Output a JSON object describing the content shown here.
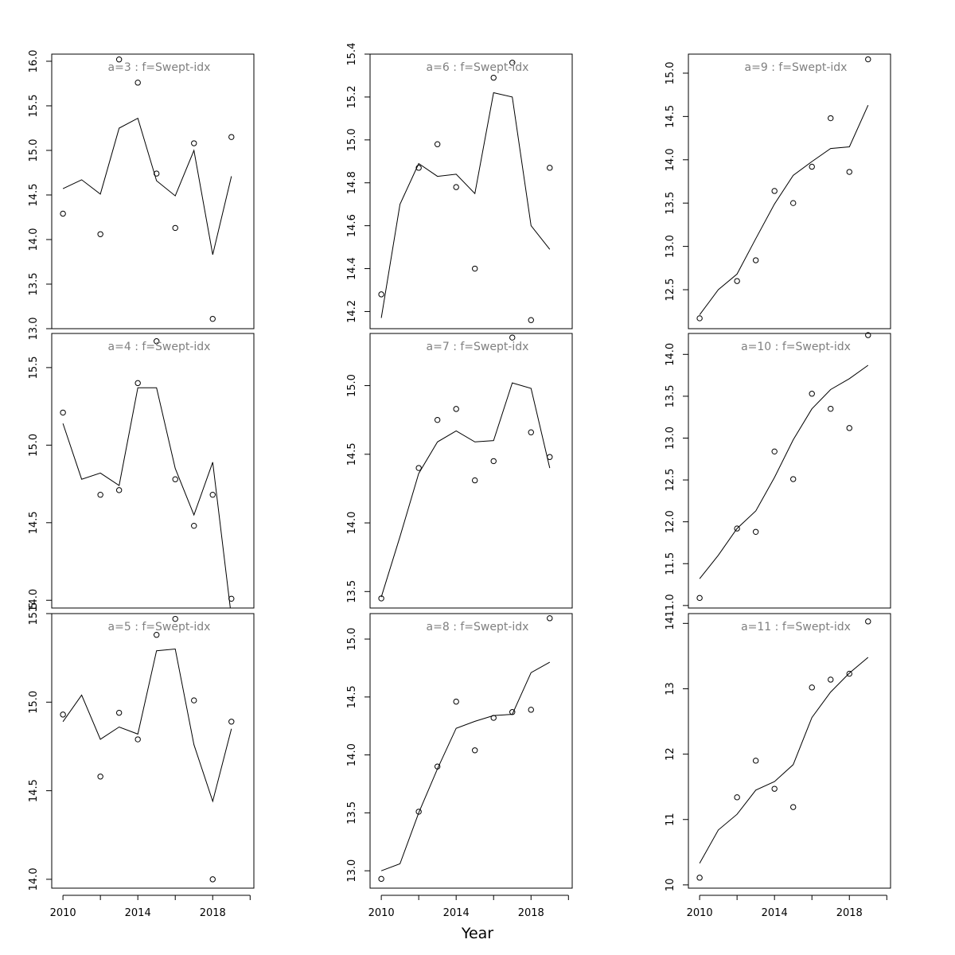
{
  "figure": {
    "xlabel": "Year"
  },
  "chart_data": [
    {
      "type": "line",
      "title": "a=3 : f=Swept-idx",
      "xlim": [
        2009.4,
        2020.2
      ],
      "ylim": [
        13.0,
        16.08
      ],
      "xticks": [
        2010,
        2014,
        2018
      ],
      "yticks": [
        13.0,
        13.5,
        14.0,
        14.5,
        15.0,
        15.5,
        16.0
      ],
      "ytick_labels": [
        "13.0",
        "13.5",
        "14.0",
        "14.5",
        "15.0",
        "15.5",
        "16.0"
      ],
      "show_xticks": false,
      "observed": [
        {
          "x": 2010,
          "y": 14.29
        },
        {
          "x": 2012,
          "y": 14.06
        },
        {
          "x": 2013,
          "y": 16.02
        },
        {
          "x": 2014,
          "y": 15.76
        },
        {
          "x": 2015,
          "y": 14.74
        },
        {
          "x": 2016,
          "y": 14.13
        },
        {
          "x": 2017,
          "y": 15.08
        },
        {
          "x": 2018,
          "y": 13.11
        },
        {
          "x": 2019,
          "y": 15.15
        }
      ],
      "fitted": [
        {
          "x": 2010,
          "y": 14.57
        },
        {
          "x": 2011,
          "y": 14.67
        },
        {
          "x": 2012,
          "y": 14.51
        },
        {
          "x": 2013,
          "y": 15.25
        },
        {
          "x": 2014,
          "y": 15.36
        },
        {
          "x": 2015,
          "y": 14.66
        },
        {
          "x": 2016,
          "y": 14.49
        },
        {
          "x": 2017,
          "y": 15.0
        },
        {
          "x": 2018,
          "y": 13.83
        },
        {
          "x": 2019,
          "y": 14.71
        }
      ]
    },
    {
      "type": "line",
      "title": "a=4 : f=Swept-idx",
      "xlim": [
        2009.4,
        2020.2
      ],
      "ylim": [
        13.95,
        15.72
      ],
      "xticks": [
        2010,
        2014,
        2018
      ],
      "yticks": [
        14.0,
        14.5,
        15.0,
        15.5
      ],
      "ytick_labels": [
        "14.0",
        "14.5",
        "15.0",
        "15.5"
      ],
      "show_xticks": false,
      "observed": [
        {
          "x": 2010,
          "y": 15.21
        },
        {
          "x": 2012,
          "y": 14.68
        },
        {
          "x": 2013,
          "y": 14.71
        },
        {
          "x": 2014,
          "y": 15.4
        },
        {
          "x": 2015,
          "y": 15.67
        },
        {
          "x": 2016,
          "y": 14.78
        },
        {
          "x": 2017,
          "y": 14.48
        },
        {
          "x": 2018,
          "y": 14.68
        },
        {
          "x": 2019,
          "y": 14.01
        }
      ],
      "fitted": [
        {
          "x": 2010,
          "y": 15.14
        },
        {
          "x": 2011,
          "y": 14.78
        },
        {
          "x": 2012,
          "y": 14.82
        },
        {
          "x": 2013,
          "y": 14.74
        },
        {
          "x": 2014,
          "y": 15.37
        },
        {
          "x": 2015,
          "y": 15.37
        },
        {
          "x": 2016,
          "y": 14.85
        },
        {
          "x": 2017,
          "y": 14.55
        },
        {
          "x": 2018,
          "y": 14.89
        },
        {
          "x": 2019,
          "y": 13.89
        }
      ]
    },
    {
      "type": "line",
      "title": "a=5 : f=Swept-idx",
      "xlim": [
        2009.4,
        2020.2
      ],
      "ylim": [
        13.95,
        15.5
      ],
      "xticks": [
        2010,
        2014,
        2018
      ],
      "yticks": [
        14.0,
        14.5,
        15.0,
        15.5
      ],
      "ytick_labels": [
        "14.0",
        "14.5",
        "15.0",
        "15.5"
      ],
      "show_xticks": true,
      "observed": [
        {
          "x": 2010,
          "y": 14.93
        },
        {
          "x": 2012,
          "y": 14.58
        },
        {
          "x": 2013,
          "y": 14.94
        },
        {
          "x": 2014,
          "y": 14.79
        },
        {
          "x": 2015,
          "y": 15.38
        },
        {
          "x": 2016,
          "y": 15.47
        },
        {
          "x": 2017,
          "y": 15.01
        },
        {
          "x": 2018,
          "y": 14.0
        },
        {
          "x": 2019,
          "y": 14.89
        }
      ],
      "fitted": [
        {
          "x": 2010,
          "y": 14.89
        },
        {
          "x": 2011,
          "y": 15.04
        },
        {
          "x": 2012,
          "y": 14.79
        },
        {
          "x": 2013,
          "y": 14.86
        },
        {
          "x": 2014,
          "y": 14.82
        },
        {
          "x": 2015,
          "y": 15.29
        },
        {
          "x": 2016,
          "y": 15.3
        },
        {
          "x": 2017,
          "y": 14.76
        },
        {
          "x": 2018,
          "y": 14.44
        },
        {
          "x": 2019,
          "y": 14.85
        }
      ]
    },
    {
      "type": "line",
      "title": "a=6 : f=Swept-idx",
      "xlim": [
        2009.4,
        2020.2
      ],
      "ylim": [
        14.12,
        15.4
      ],
      "xticks": [
        2010,
        2014,
        2018
      ],
      "yticks": [
        14.2,
        14.4,
        14.6,
        14.8,
        15.0,
        15.2,
        15.4
      ],
      "ytick_labels": [
        "14.2",
        "14.4",
        "14.6",
        "14.8",
        "15.0",
        "15.2",
        "15.4"
      ],
      "show_xticks": false,
      "observed": [
        {
          "x": 2010,
          "y": 14.28
        },
        {
          "x": 2012,
          "y": 14.87
        },
        {
          "x": 2013,
          "y": 14.98
        },
        {
          "x": 2014,
          "y": 14.78
        },
        {
          "x": 2015,
          "y": 14.4
        },
        {
          "x": 2016,
          "y": 15.29
        },
        {
          "x": 2017,
          "y": 15.36
        },
        {
          "x": 2018,
          "y": 14.16
        },
        {
          "x": 2019,
          "y": 14.87
        }
      ],
      "fitted": [
        {
          "x": 2010,
          "y": 14.17
        },
        {
          "x": 2011,
          "y": 14.7
        },
        {
          "x": 2012,
          "y": 14.89
        },
        {
          "x": 2013,
          "y": 14.83
        },
        {
          "x": 2014,
          "y": 14.84
        },
        {
          "x": 2015,
          "y": 14.75
        },
        {
          "x": 2016,
          "y": 15.22
        },
        {
          "x": 2017,
          "y": 15.2
        },
        {
          "x": 2018,
          "y": 14.6
        },
        {
          "x": 2019,
          "y": 14.49
        }
      ]
    },
    {
      "type": "line",
      "title": "a=7 : f=Swept-idx",
      "xlim": [
        2009.4,
        2020.2
      ],
      "ylim": [
        13.38,
        15.38
      ],
      "xticks": [
        2010,
        2014,
        2018
      ],
      "yticks": [
        13.5,
        14.0,
        14.5,
        15.0
      ],
      "ytick_labels": [
        "13.5",
        "14.0",
        "14.5",
        "15.0"
      ],
      "show_xticks": false,
      "observed": [
        {
          "x": 2010,
          "y": 13.45
        },
        {
          "x": 2012,
          "y": 14.4
        },
        {
          "x": 2013,
          "y": 14.75
        },
        {
          "x": 2014,
          "y": 14.83
        },
        {
          "x": 2015,
          "y": 14.31
        },
        {
          "x": 2016,
          "y": 14.45
        },
        {
          "x": 2017,
          "y": 15.35
        },
        {
          "x": 2018,
          "y": 14.66
        },
        {
          "x": 2019,
          "y": 14.48
        }
      ],
      "fitted": [
        {
          "x": 2010,
          "y": 13.46
        },
        {
          "x": 2011,
          "y": 13.9
        },
        {
          "x": 2012,
          "y": 14.36
        },
        {
          "x": 2013,
          "y": 14.59
        },
        {
          "x": 2014,
          "y": 14.67
        },
        {
          "x": 2015,
          "y": 14.59
        },
        {
          "x": 2016,
          "y": 14.6
        },
        {
          "x": 2017,
          "y": 15.02
        },
        {
          "x": 2018,
          "y": 14.98
        },
        {
          "x": 2019,
          "y": 14.4
        }
      ]
    },
    {
      "type": "line",
      "title": "a=8 : f=Swept-idx",
      "xlim": [
        2009.4,
        2020.2
      ],
      "ylim": [
        12.85,
        15.22
      ],
      "xticks": [
        2010,
        2014,
        2018
      ],
      "yticks": [
        13.0,
        13.5,
        14.0,
        14.5,
        15.0
      ],
      "ytick_labels": [
        "13.0",
        "13.5",
        "14.0",
        "14.5",
        "15.0"
      ],
      "show_xticks": true,
      "observed": [
        {
          "x": 2010,
          "y": 12.93
        },
        {
          "x": 2012,
          "y": 13.51
        },
        {
          "x": 2013,
          "y": 13.9
        },
        {
          "x": 2014,
          "y": 14.46
        },
        {
          "x": 2015,
          "y": 14.04
        },
        {
          "x": 2016,
          "y": 14.32
        },
        {
          "x": 2017,
          "y": 14.37
        },
        {
          "x": 2018,
          "y": 14.39
        },
        {
          "x": 2019,
          "y": 15.18
        }
      ],
      "fitted": [
        {
          "x": 2010,
          "y": 13.0
        },
        {
          "x": 2011,
          "y": 13.06
        },
        {
          "x": 2012,
          "y": 13.5
        },
        {
          "x": 2013,
          "y": 13.88
        },
        {
          "x": 2014,
          "y": 14.23
        },
        {
          "x": 2015,
          "y": 14.29
        },
        {
          "x": 2016,
          "y": 14.34
        },
        {
          "x": 2017,
          "y": 14.35
        },
        {
          "x": 2018,
          "y": 14.71
        },
        {
          "x": 2019,
          "y": 14.8
        }
      ]
    },
    {
      "type": "line",
      "title": "a=9 : f=Swept-idx",
      "xlim": [
        2009.4,
        2020.2
      ],
      "ylim": [
        12.05,
        15.22
      ],
      "xticks": [
        2010,
        2014,
        2018
      ],
      "yticks": [
        12.5,
        13.0,
        13.5,
        14.0,
        14.5,
        15.0
      ],
      "ytick_labels": [
        "12.5",
        "13.0",
        "13.5",
        "14.0",
        "14.5",
        "15.0"
      ],
      "show_xticks": false,
      "observed": [
        {
          "x": 2010,
          "y": 12.17
        },
        {
          "x": 2012,
          "y": 12.6
        },
        {
          "x": 2013,
          "y": 12.84
        },
        {
          "x": 2014,
          "y": 13.64
        },
        {
          "x": 2015,
          "y": 13.5
        },
        {
          "x": 2016,
          "y": 13.92
        },
        {
          "x": 2017,
          "y": 14.48
        },
        {
          "x": 2018,
          "y": 13.86
        },
        {
          "x": 2019,
          "y": 15.16
        }
      ],
      "fitted": [
        {
          "x": 2010,
          "y": 12.21
        },
        {
          "x": 2011,
          "y": 12.5
        },
        {
          "x": 2012,
          "y": 12.68
        },
        {
          "x": 2013,
          "y": 13.09
        },
        {
          "x": 2014,
          "y": 13.49
        },
        {
          "x": 2015,
          "y": 13.82
        },
        {
          "x": 2016,
          "y": 13.98
        },
        {
          "x": 2017,
          "y": 14.13
        },
        {
          "x": 2018,
          "y": 14.15
        },
        {
          "x": 2019,
          "y": 14.63
        }
      ]
    },
    {
      "type": "line",
      "title": "a=10 : f=Swept-idx",
      "xlim": [
        2009.4,
        2020.2
      ],
      "ylim": [
        10.97,
        14.25
      ],
      "xticks": [
        2010,
        2014,
        2018
      ],
      "yticks": [
        11.0,
        11.5,
        12.0,
        12.5,
        13.0,
        13.5,
        14.0
      ],
      "ytick_labels": [
        "11.0",
        "11.5",
        "12.0",
        "12.5",
        "13.0",
        "13.5",
        "14.0"
      ],
      "show_xticks": false,
      "observed": [
        {
          "x": 2010,
          "y": 11.09
        },
        {
          "x": 2012,
          "y": 11.92
        },
        {
          "x": 2013,
          "y": 11.88
        },
        {
          "x": 2014,
          "y": 12.84
        },
        {
          "x": 2015,
          "y": 12.51
        },
        {
          "x": 2016,
          "y": 13.53
        },
        {
          "x": 2017,
          "y": 13.35
        },
        {
          "x": 2018,
          "y": 13.12
        },
        {
          "x": 2019,
          "y": 14.23
        }
      ],
      "fitted": [
        {
          "x": 2010,
          "y": 11.32
        },
        {
          "x": 2011,
          "y": 11.6
        },
        {
          "x": 2012,
          "y": 11.92
        },
        {
          "x": 2013,
          "y": 12.13
        },
        {
          "x": 2014,
          "y": 12.53
        },
        {
          "x": 2015,
          "y": 12.98
        },
        {
          "x": 2016,
          "y": 13.35
        },
        {
          "x": 2017,
          "y": 13.58
        },
        {
          "x": 2018,
          "y": 13.71
        },
        {
          "x": 2019,
          "y": 13.87
        }
      ]
    },
    {
      "type": "line",
      "title": "a=11 : f=Swept-idx",
      "xlim": [
        2009.4,
        2020.2
      ],
      "ylim": [
        9.95,
        14.15
      ],
      "xticks": [
        2010,
        2014,
        2018
      ],
      "yticks": [
        10,
        11,
        12,
        13,
        14
      ],
      "ytick_labels": [
        "10",
        "11",
        "12",
        "13",
        "14"
      ],
      "show_xticks": true,
      "observed": [
        {
          "x": 2010,
          "y": 10.11
        },
        {
          "x": 2012,
          "y": 11.34
        },
        {
          "x": 2013,
          "y": 11.9
        },
        {
          "x": 2014,
          "y": 11.47
        },
        {
          "x": 2015,
          "y": 11.19
        },
        {
          "x": 2016,
          "y": 13.02
        },
        {
          "x": 2017,
          "y": 13.14
        },
        {
          "x": 2018,
          "y": 13.23
        },
        {
          "x": 2019,
          "y": 14.03
        }
      ],
      "fitted": [
        {
          "x": 2010,
          "y": 10.33
        },
        {
          "x": 2011,
          "y": 10.84
        },
        {
          "x": 2012,
          "y": 11.08
        },
        {
          "x": 2013,
          "y": 11.45
        },
        {
          "x": 2014,
          "y": 11.58
        },
        {
          "x": 2015,
          "y": 11.84
        },
        {
          "x": 2016,
          "y": 12.56
        },
        {
          "x": 2017,
          "y": 12.95
        },
        {
          "x": 2018,
          "y": 13.24
        },
        {
          "x": 2019,
          "y": 13.48
        }
      ]
    }
  ]
}
